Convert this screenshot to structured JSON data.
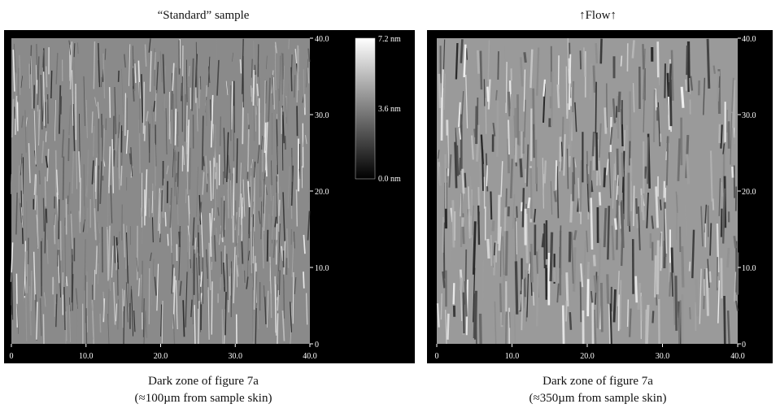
{
  "panels": [
    {
      "title": "“Standard” sample",
      "x_ticks": [
        "0",
        "10.0",
        "20.0",
        "30.0",
        "40.0"
      ],
      "y_ticks": [
        "0",
        "10.0",
        "20.0",
        "30.0",
        "40.0"
      ],
      "colorbar": [
        "7.2 nm",
        "3.6 nm",
        "0.0 nm"
      ],
      "caption": [
        "Dark zone of figure 7a",
        "(≈100µm from sample skin)"
      ]
    },
    {
      "title": "↑Flow↑",
      "x_ticks": [
        "0",
        "10.0",
        "20.0",
        "30.0",
        "40.0"
      ],
      "y_ticks": [
        "0",
        "10.0",
        "20.0",
        "30.0",
        "40.0"
      ],
      "caption": [
        "Dark zone of figure 7a",
        "(≈350µm from sample skin)"
      ]
    }
  ]
}
